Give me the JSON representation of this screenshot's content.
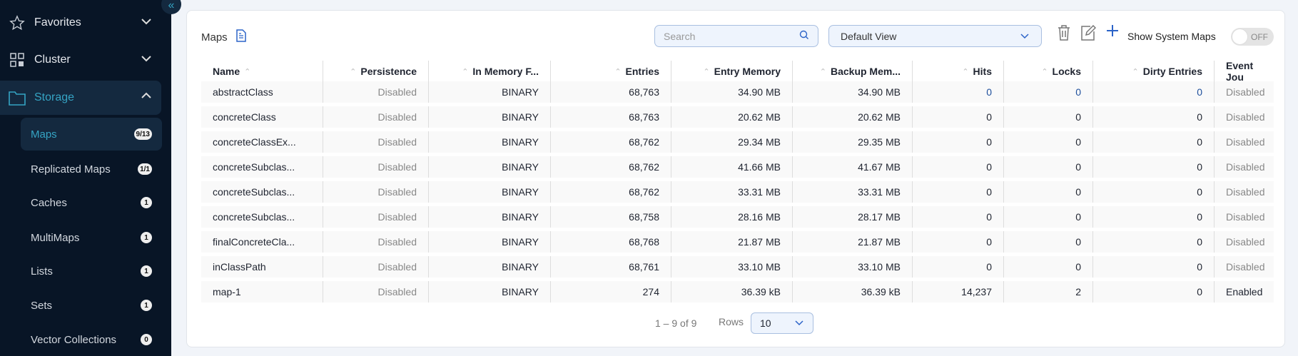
{
  "sidebar": {
    "items": [
      {
        "label": "Favorites",
        "icon": "star-icon"
      },
      {
        "label": "Cluster",
        "icon": "grid-icon"
      },
      {
        "label": "Storage",
        "icon": "folder-icon"
      }
    ],
    "sub_items": [
      {
        "label": "Maps",
        "badge": "9/13"
      },
      {
        "label": "Replicated Maps",
        "badge": "1/1"
      },
      {
        "label": "Caches",
        "badge": "1"
      },
      {
        "label": "MultiMaps",
        "badge": "1"
      },
      {
        "label": "Lists",
        "badge": "1"
      },
      {
        "label": "Sets",
        "badge": "1"
      },
      {
        "label": "Vector Collections",
        "badge": "0"
      }
    ]
  },
  "header": {
    "title": "Maps",
    "search_placeholder": "Search",
    "view": "Default View",
    "show_system_label": "Show System Maps",
    "toggle": "OFF"
  },
  "table": {
    "columns": [
      "Name",
      "Persistence",
      "In Memory F...",
      "Entries",
      "Entry Memory",
      "Backup Mem...",
      "Hits",
      "Locks",
      "Dirty Entries",
      "Event Jou"
    ],
    "rows": [
      [
        "abstractClass",
        "Disabled",
        "BINARY",
        "68,763",
        "34.90 MB",
        "34.90 MB",
        "0",
        "0",
        "0",
        "Disabled"
      ],
      [
        "concreteClass",
        "Disabled",
        "BINARY",
        "68,763",
        "20.62 MB",
        "20.62 MB",
        "0",
        "0",
        "0",
        "Disabled"
      ],
      [
        "concreteClassEx...",
        "Disabled",
        "BINARY",
        "68,762",
        "29.34 MB",
        "29.35 MB",
        "0",
        "0",
        "0",
        "Disabled"
      ],
      [
        "concreteSubclas...",
        "Disabled",
        "BINARY",
        "68,762",
        "41.66 MB",
        "41.67 MB",
        "0",
        "0",
        "0",
        "Disabled"
      ],
      [
        "concreteSubclas...",
        "Disabled",
        "BINARY",
        "68,762",
        "33.31 MB",
        "33.31 MB",
        "0",
        "0",
        "0",
        "Disabled"
      ],
      [
        "concreteSubclas...",
        "Disabled",
        "BINARY",
        "68,758",
        "28.16 MB",
        "28.17 MB",
        "0",
        "0",
        "0",
        "Disabled"
      ],
      [
        "finalConcreteCla...",
        "Disabled",
        "BINARY",
        "68,768",
        "21.87 MB",
        "21.87 MB",
        "0",
        "0",
        "0",
        "Disabled"
      ],
      [
        "inClassPath",
        "Disabled",
        "BINARY",
        "68,761",
        "33.10 MB",
        "33.10 MB",
        "0",
        "0",
        "0",
        "Disabled"
      ],
      [
        "map-1",
        "Disabled",
        "BINARY",
        "274",
        "36.39 kB",
        "36.39 kB",
        "14,237",
        "2",
        "0",
        "Enabled"
      ]
    ]
  },
  "pagination": {
    "range": "1 – 9 of 9",
    "rows_label": "Rows",
    "rows_value": "10"
  },
  "colors": {
    "sidebar": "#081526",
    "accent": "#35a4c4",
    "link": "#1e4f9c"
  }
}
